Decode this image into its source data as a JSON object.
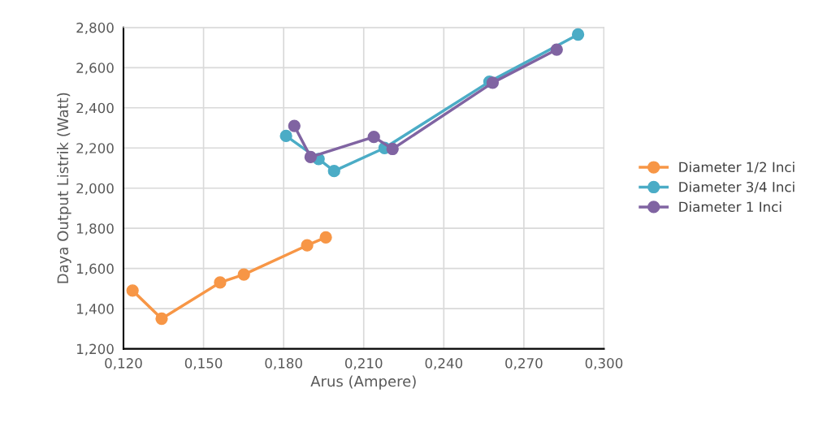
{
  "chart_data": {
    "type": "line",
    "xlabel": "Arus (Ampere)",
    "ylabel": "Daya Output Listrik (Watt)",
    "xlim": [
      0.12,
      0.3
    ],
    "xticks": [
      {
        "value": 0.12,
        "label": "0,120"
      },
      {
        "value": 0.15,
        "label": "0,150"
      },
      {
        "value": 0.18,
        "label": "0,180"
      },
      {
        "value": 0.21,
        "label": "0,210"
      },
      {
        "value": 0.24,
        "label": "0,240"
      },
      {
        "value": 0.27,
        "label": "0,270"
      },
      {
        "value": 0.3,
        "label": "0,300"
      }
    ],
    "ylim": [
      1.2,
      2.8
    ],
    "yticks": [
      {
        "value": 1.2,
        "label": "1,200"
      },
      {
        "value": 1.4,
        "label": "1,400"
      },
      {
        "value": 1.6,
        "label": "1,600"
      },
      {
        "value": 1.8,
        "label": "1,800"
      },
      {
        "value": 2.0,
        "label": "2,000"
      },
      {
        "value": 2.2,
        "label": "2,200"
      },
      {
        "value": 2.4,
        "label": "2,400"
      },
      {
        "value": 2.6,
        "label": "2,600"
      },
      {
        "value": 2.8,
        "label": "2,800"
      }
    ],
    "grid": true,
    "legend": "right",
    "marker": "circle",
    "line_style": "solid",
    "series": [
      {
        "name": "Diameter 1/2 Inci",
        "color": "#f79646",
        "x": [
          0.1234,
          0.1343,
          0.1562,
          0.1651,
          0.1888,
          0.1958
        ],
        "values": [
          1.49,
          1.35,
          1.53,
          1.57,
          1.715,
          1.755
        ]
      },
      {
        "name": "Diameter 3/4 Inci",
        "color": "#4bacc6",
        "x": [
          0.1809,
          0.1931,
          0.1989,
          0.2178,
          0.2571,
          0.2903
        ],
        "values": [
          2.26,
          2.145,
          2.085,
          2.2,
          2.53,
          2.765
        ]
      },
      {
        "name": "Diameter 1 Inci",
        "color": "#8064a2",
        "x": [
          0.184,
          0.1901,
          0.2138,
          0.2208,
          0.2583,
          0.2823
        ],
        "values": [
          2.31,
          2.155,
          2.255,
          2.195,
          2.525,
          2.69
        ]
      }
    ]
  }
}
